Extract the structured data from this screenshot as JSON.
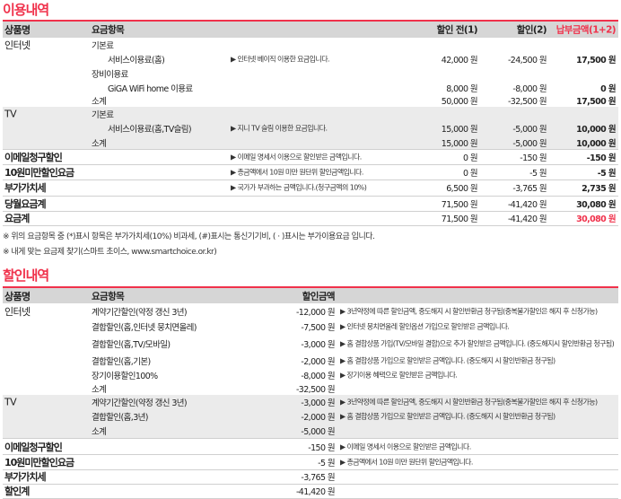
{
  "usage": {
    "title": "이용내역",
    "headers": [
      "상품명",
      "요금항목",
      "할인 전(1)",
      "할인(2)",
      "납부금액(1+2)"
    ],
    "rows": [
      {
        "c1": "인터넷",
        "c2": "기본료"
      },
      {
        "c2s": "서비스이용료(홈)",
        "desc": "▶ 인터넷 베이직 이용한 요금입니다.",
        "a1": "42,000 원",
        "a2": "-24,500 원",
        "a3": "17,500 원"
      },
      {
        "c2": "장비이용료"
      },
      {
        "c2s": "GiGA WiFi home 이용료",
        "a1": "8,000 원",
        "a2": "-8,000 원",
        "a3": "0 원"
      },
      {
        "c2": "소계",
        "a1": "50,000 원",
        "a2": "-32,500 원",
        "a3": "17,500 원"
      },
      {
        "c1": "TV",
        "c2": "기본료"
      },
      {
        "c2s": "서비스이용료(홈,TV슬림)",
        "desc": "▶ 지니 TV 슬림 이용한 요금입니다.",
        "a1": "15,000 원",
        "a2": "-5,000 원",
        "a3": "10,000 원"
      },
      {
        "c2": "소계",
        "a1": "15,000 원",
        "a2": "-5,000 원",
        "a3": "10,000 원"
      },
      {
        "c1": "이메일청구할인",
        "desc": "▶ 이메일 명세서 이용으로 할인받은 금액입니다.",
        "a1": "0 원",
        "a2": "-150 원",
        "a3": "-150 원"
      },
      {
        "c1": "10원미만할인요금",
        "desc": "▶ 총금액에서 10원 미만 원단위 할인금액입니다.",
        "a1": "0 원",
        "a2": "-5 원",
        "a3": "-5 원"
      },
      {
        "c1": "부가가치세",
        "desc": "▶ 국가가 부과하는 금액입니다.(청구금액의 10%)",
        "a1": "6,500 원",
        "a2": "-3,765 원",
        "a3": "2,735 원"
      },
      {
        "c1": "당월요금계",
        "a1": "71,500 원",
        "a2": "-41,420 원",
        "a3": "30,080 원"
      },
      {
        "c1": "요금계",
        "a1": "71,500 원",
        "a2": "-41,420 원",
        "a3": "30,080 원"
      }
    ],
    "notes": [
      "※ 위의 요금항목 중 (*)표시 항목은 부가가치세(10%) 비과세, (#)표시는 통신기기비, ( · )표시는 부가이용요금 입니다.",
      "※ 내게 맞는 요금제 찾기(스마트 초이스, www.smartchoice.or.kr)"
    ]
  },
  "discount": {
    "title": "할인내역",
    "headers": [
      "상품명",
      "요금항목",
      "할인금액"
    ],
    "rows": [
      {
        "c1": "인터넷",
        "c2": "계약기간할인(약정 갱신 3년)",
        "d1": "-12,000 원",
        "desc": "▶ 3년약정에 따른 할인금액, 중도해지 시 할인반환금 청구됨(중복불가할인은 해지 후 신청가능)"
      },
      {
        "c2": "결합할인(홈,인터넷 뭉치면올레)",
        "d1": "-7,500 원",
        "desc": "▶ 인터넷 뭉치면올레 할인옵션 가입으로 할인받은 금액입니다."
      },
      {
        "c2": "결합할인(홈,TV/모바일)",
        "d1": "-3,000 원",
        "desc": "▶ 홈 결합상품 가입(TV/모바일 결합)으로 추가 할인받은 금액입니다. (중도해지시 할인반환금 청구됨)"
      },
      {
        "c2": "결합할인(홈,기본)",
        "d1": "-2,000 원",
        "desc": "▶ 홈 결합상품 가입으로 할인받은 금액입니다. (중도해지 시 할인반환금 청구됨)"
      },
      {
        "c2": "장기이용할인100%",
        "d1": "-8,000 원",
        "desc": "▶ 장기이용 혜택으로 할인받은 금액입니다."
      },
      {
        "c2": "소계",
        "d1": "-32,500 원"
      },
      {
        "c1": "TV",
        "c2": "계약기간할인(약정 갱신 3년)",
        "d1": "-3,000 원",
        "desc": "▶ 3년약정에 따른 할인금액, 중도해지 시 할인반환금 청구됨(중복불가할인은 해지 후 신청가능)"
      },
      {
        "c2": "결합할인(홈,3년)",
        "d1": "-2,000 원",
        "desc": "▶ 홈 결합상품 가입으로 할인받은 금액입니다. (중도해지 시 할인반환금 청구됨)"
      },
      {
        "c2": "소계",
        "d1": "-5,000 원"
      },
      {
        "c1": "이메일청구할인",
        "d1": "-150 원",
        "desc": "▶ 이메일 명세서 이용으로 할인받은 금액입니다."
      },
      {
        "c1": "10원미만할인요금",
        "d1": "-5 원",
        "desc": "▶ 총금액에서 10원 미만 원단위 할인금액입니다."
      },
      {
        "c1": "부가가치세",
        "d1": "-3,765 원"
      },
      {
        "c1": "할인계",
        "d1": "-41,420 원"
      }
    ]
  },
  "colors": {
    "accent": "#f0314b",
    "header_bg": "#d6d6d6",
    "group_bg": "#ebebeb"
  }
}
